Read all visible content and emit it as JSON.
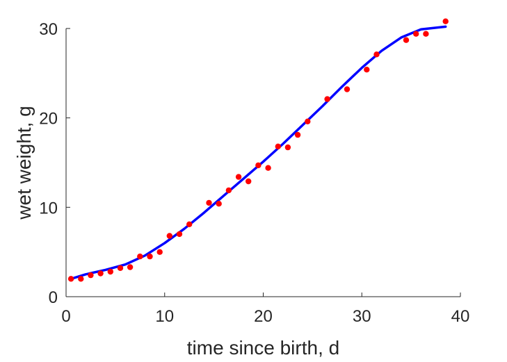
{
  "chart_data": {
    "type": "scatter",
    "title": "",
    "xlabel": "time since birth, d",
    "ylabel": "wet weight, g",
    "xlim": [
      0,
      40
    ],
    "ylim": [
      0,
      30
    ],
    "xticks": [
      0,
      10,
      20,
      30,
      40
    ],
    "yticks": [
      0,
      10,
      20,
      30
    ],
    "grid": false,
    "series": [
      {
        "kind": "points",
        "color": "#ff0000",
        "points": [
          [
            0.5,
            2.0
          ],
          [
            1.5,
            2.0
          ],
          [
            2.5,
            2.4
          ],
          [
            3.5,
            2.6
          ],
          [
            4.5,
            2.8
          ],
          [
            5.5,
            3.2
          ],
          [
            6.5,
            3.3
          ],
          [
            7.5,
            4.5
          ],
          [
            8.5,
            4.5
          ],
          [
            9.5,
            5.0
          ],
          [
            10.5,
            6.8
          ],
          [
            11.5,
            7.0
          ],
          [
            12.5,
            8.1
          ],
          [
            14.5,
            10.5
          ],
          [
            15.5,
            10.4
          ],
          [
            16.5,
            11.9
          ],
          [
            17.5,
            13.4
          ],
          [
            18.5,
            12.9
          ],
          [
            19.5,
            14.7
          ],
          [
            20.5,
            14.4
          ],
          [
            21.5,
            16.8
          ],
          [
            22.5,
            16.7
          ],
          [
            23.5,
            18.1
          ],
          [
            24.5,
            19.6
          ],
          [
            26.5,
            22.1
          ],
          [
            28.5,
            23.2
          ],
          [
            30.5,
            25.4
          ],
          [
            31.5,
            27.1
          ],
          [
            34.5,
            28.7
          ],
          [
            35.5,
            29.4
          ],
          [
            36.5,
            29.4
          ],
          [
            38.5,
            30.8
          ]
        ]
      },
      {
        "kind": "line",
        "color": "#0000ff",
        "points": [
          [
            0.5,
            2.0
          ],
          [
            2,
            2.5
          ],
          [
            4,
            3.0
          ],
          [
            6,
            3.6
          ],
          [
            8,
            4.6
          ],
          [
            10,
            6.0
          ],
          [
            12,
            7.6
          ],
          [
            14,
            9.4
          ],
          [
            16,
            11.3
          ],
          [
            18,
            13.2
          ],
          [
            20,
            15.1
          ],
          [
            22,
            17.1
          ],
          [
            24,
            19.2
          ],
          [
            26,
            21.3
          ],
          [
            28,
            23.5
          ],
          [
            30,
            25.6
          ],
          [
            32,
            27.5
          ],
          [
            34,
            29.0
          ],
          [
            36,
            29.9
          ],
          [
            38.5,
            30.2
          ]
        ]
      }
    ]
  }
}
